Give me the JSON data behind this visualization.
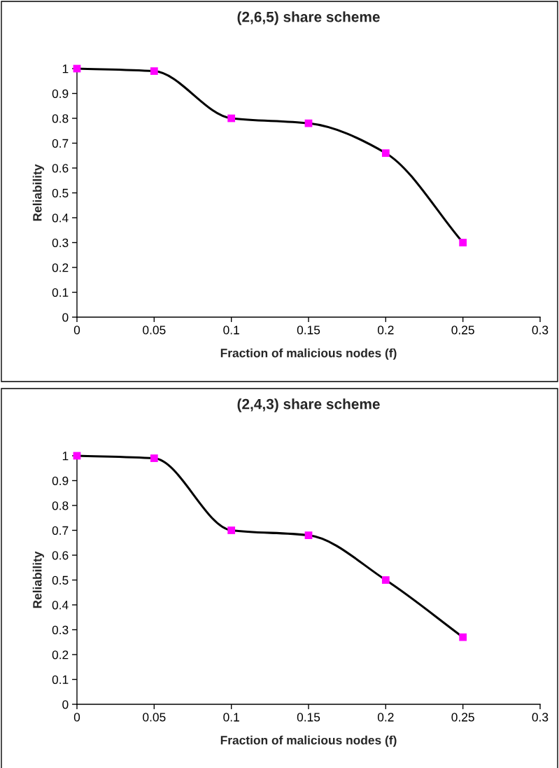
{
  "chart_data": [
    {
      "type": "line",
      "title": "(2,6,5) share scheme",
      "xlabel": "Fraction of malicious nodes (f)",
      "ylabel": "Reliability",
      "x": [
        0,
        0.05,
        0.1,
        0.15,
        0.2,
        0.25
      ],
      "series": [
        {
          "color": "#000000",
          "colors": [
            "#ff00ff",
            "#ff00ff",
            "#ff00ff",
            "#ff00ff",
            "#ff00ff",
            "#ff00ff"
          ],
          "values": [
            1,
            0.99,
            0.8,
            0.78,
            0.66,
            0.3
          ]
        }
      ],
      "xlim": [
        0,
        0.3
      ],
      "xticks": [
        0,
        0.05,
        0.1,
        0.15,
        0.2,
        0.25,
        0.3
      ],
      "ylim": [
        0,
        1
      ],
      "yticks": [
        0,
        0.1,
        0.2,
        0.3,
        0.4,
        0.5,
        0.6,
        0.7,
        0.8,
        0.9,
        1
      ],
      "marker": "square",
      "line_style": "solid",
      "grid": false,
      "legend": false
    },
    {
      "type": "line",
      "title": "(2,4,3) share scheme",
      "xlabel": "Fraction of malicious nodes (f)",
      "ylabel": "Reliability",
      "x": [
        0,
        0.05,
        0.1,
        0.15,
        0.2,
        0.25
      ],
      "series": [
        {
          "color": "#000000",
          "colors": [
            "#ff00ff",
            "#ff00ff",
            "#ff00ff",
            "#ff00ff",
            "#ff00ff",
            "#ff00ff"
          ],
          "values": [
            1,
            0.99,
            0.7,
            0.68,
            0.5,
            0.27
          ]
        }
      ],
      "xlim": [
        0,
        0.3
      ],
      "xticks": [
        0,
        0.05,
        0.1,
        0.15,
        0.2,
        0.25,
        0.3
      ],
      "ylim": [
        0,
        1
      ],
      "yticks": [
        0,
        0.1,
        0.2,
        0.3,
        0.4,
        0.5,
        0.6,
        0.7,
        0.8,
        0.9,
        1
      ],
      "marker": "square",
      "line_style": "solid",
      "grid": false,
      "legend": false
    }
  ]
}
